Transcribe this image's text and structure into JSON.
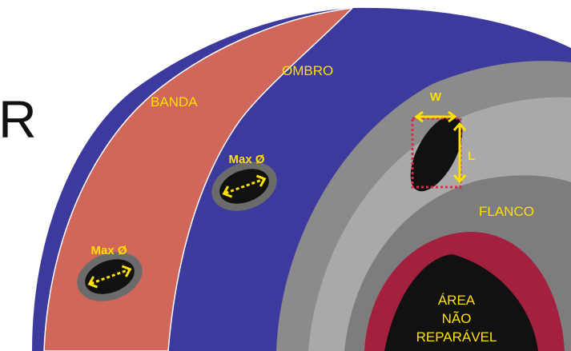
{
  "heading_fragment": "R",
  "labels": {
    "tread": "BANDA",
    "shoulder": "OMBRO",
    "sidewall": "FLANCO"
  },
  "holes": [
    {
      "label": "Max Ø"
    },
    {
      "label": "Max Ø"
    }
  ],
  "sidewall_damage": {
    "width": "W",
    "length": "L"
  },
  "non_repairable_area": {
    "lines": [
      "ÁREA",
      "NÃO",
      "REPARÁVEL"
    ]
  }
}
